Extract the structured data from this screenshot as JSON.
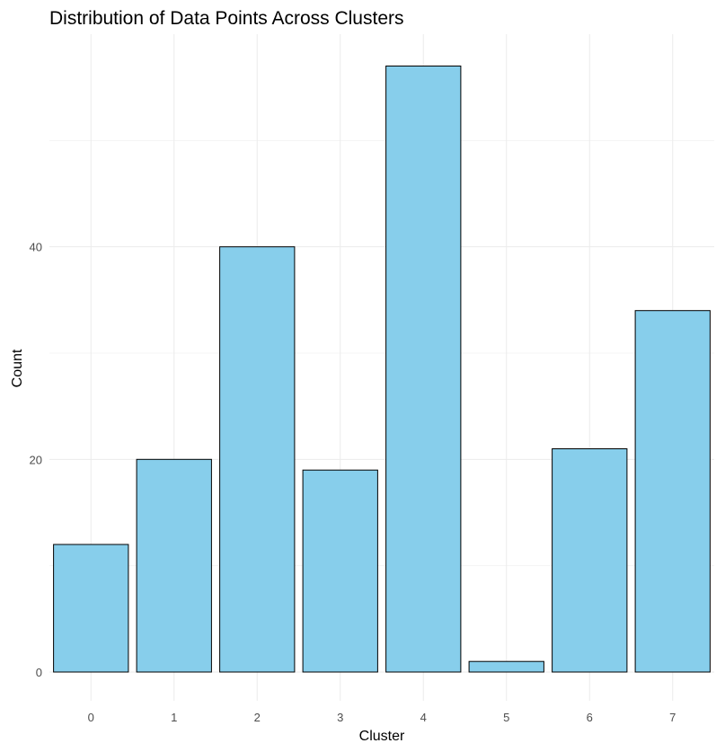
{
  "chart_data": {
    "type": "bar",
    "title": "Distribution of Data Points Across Clusters",
    "xlabel": "Cluster",
    "ylabel": "Count",
    "categories": [
      "0",
      "1",
      "2",
      "3",
      "4",
      "5",
      "6",
      "7"
    ],
    "values": [
      12,
      20,
      40,
      19,
      57,
      1,
      21,
      34
    ],
    "ylim": [
      0,
      57
    ],
    "yticks": [
      0,
      20,
      40
    ],
    "y_minor_ticks": [
      10,
      30,
      50
    ],
    "grid": true,
    "legend": "none",
    "colors": {
      "bar_fill": "#87CEEB",
      "bar_outline": "#000000",
      "grid": "#ebebeb"
    }
  }
}
